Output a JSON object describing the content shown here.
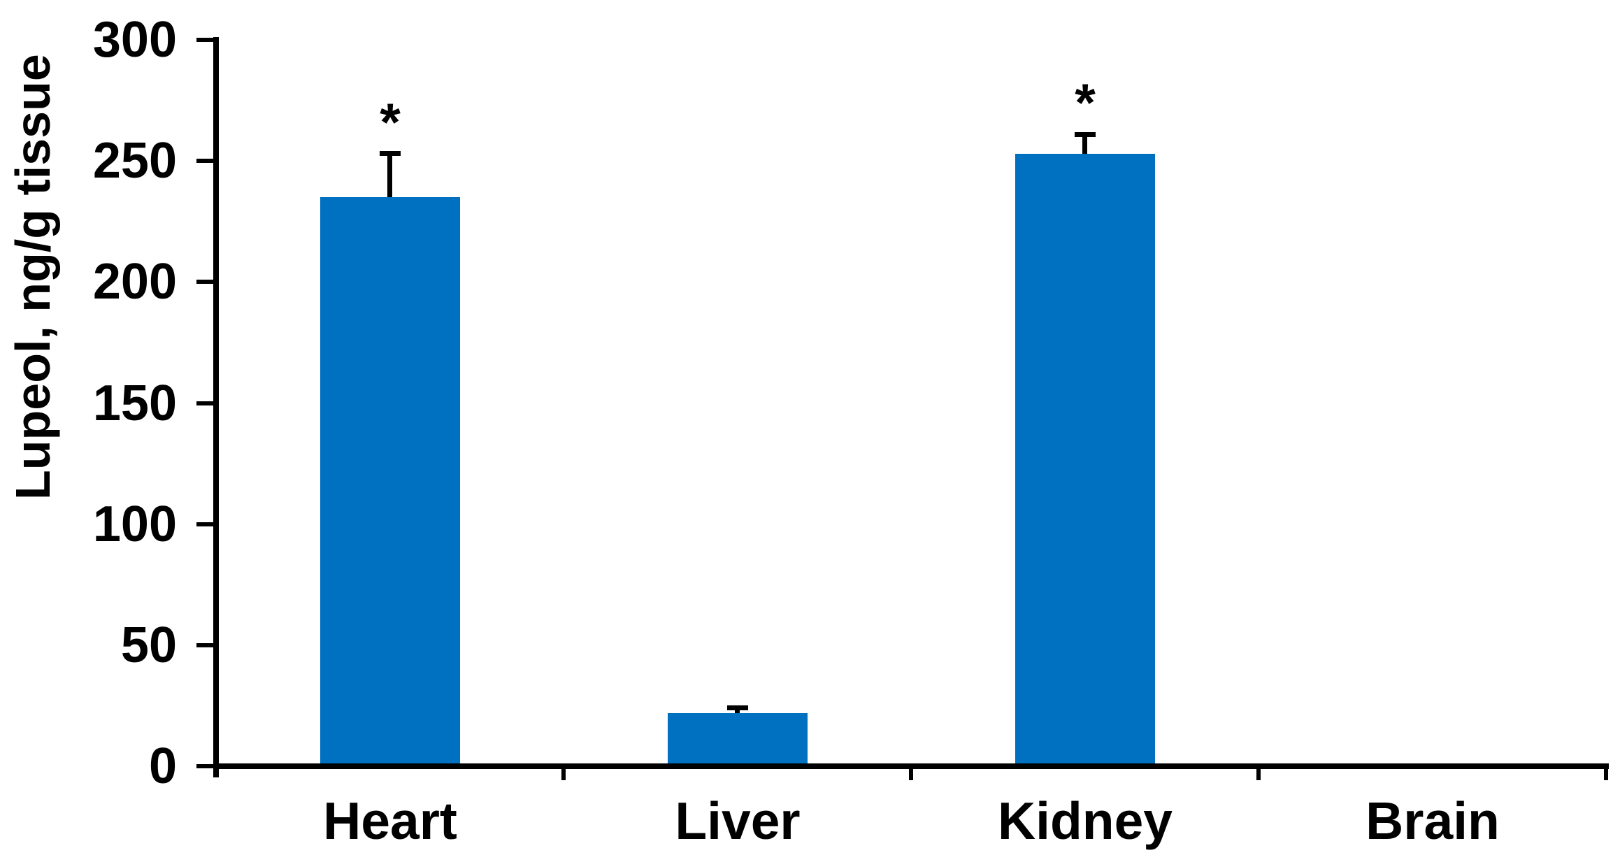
{
  "chart_data": {
    "type": "bar",
    "title": "",
    "xlabel": "",
    "ylabel": "Lupeol, ng/g tissue",
    "ylim": [
      0,
      300
    ],
    "yticks": [
      0,
      50,
      100,
      150,
      200,
      250,
      300
    ],
    "categories": [
      "Heart",
      "Liver",
      "Kidney",
      "Brain"
    ],
    "values": [
      235,
      22,
      253,
      0
    ],
    "error_plus": [
      18,
      2,
      8,
      0
    ],
    "significance": [
      "*",
      "",
      "*",
      ""
    ],
    "grid": false,
    "legend": false,
    "bar_color": "#0071C1",
    "axis_color": "#000000",
    "background_color": "#FFFFFF"
  }
}
